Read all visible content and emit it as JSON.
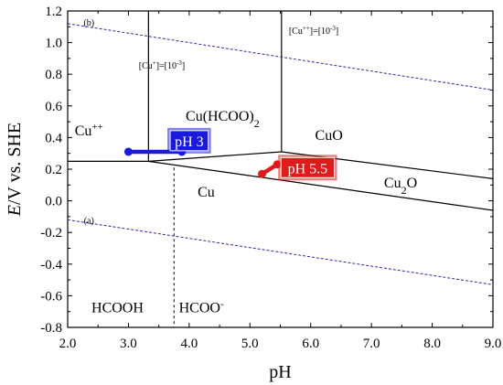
{
  "chart_data": {
    "type": "line",
    "title": "",
    "xlabel": "pH",
    "ylabel_italic": "E",
    "ylabel_rest": "/V vs. SHE",
    "xlim": [
      2.0,
      9.0
    ],
    "ylim": [
      -0.8,
      1.2
    ],
    "xticks": [
      "2.0",
      "3.0",
      "4.0",
      "5.0",
      "6.0",
      "7.0",
      "8.0",
      "9.0"
    ],
    "yticks": [
      "-0.8",
      "-0.6",
      "-0.4",
      "-0.2",
      "0.0",
      "0.2",
      "0.4",
      "0.6",
      "0.8",
      "1.0",
      "1.2"
    ],
    "boundaries": [
      {
        "name": "",
        "style": "solid",
        "x": [
          2.0,
          3.33
        ],
        "y": [
          0.25,
          0.25
        ]
      },
      {
        "name": "",
        "style": "solid",
        "x": [
          3.33,
          3.33
        ],
        "y": [
          0.25,
          1.2
        ]
      },
      {
        "name": "",
        "style": "solid",
        "x": [
          3.33,
          5.52
        ],
        "y": [
          0.25,
          0.31
        ]
      },
      {
        "name": "",
        "style": "solid",
        "x": [
          5.52,
          5.52
        ],
        "y": [
          0.31,
          1.2
        ]
      },
      {
        "name": "",
        "style": "solid",
        "x": [
          5.52,
          9.0
        ],
        "y": [
          0.31,
          0.14
        ]
      },
      {
        "name": "",
        "style": "solid",
        "x": [
          3.33,
          9.0
        ],
        "y": [
          0.25,
          -0.06
        ]
      },
      {
        "name": "",
        "style": "dashed",
        "x": [
          3.75,
          3.75
        ],
        "y": [
          0.21,
          -0.8
        ]
      },
      {
        "name": "",
        "style": "dotted-blue",
        "x": [
          2.0,
          9.0
        ],
        "y": [
          1.12,
          0.7
        ]
      },
      {
        "name": "",
        "style": "dotted-blue",
        "x": [
          2.0,
          9.0
        ],
        "y": [
          -0.12,
          -0.53
        ]
      }
    ],
    "series": [
      {
        "name": "pH 3",
        "color": "#1a1adf",
        "x": [
          3.0,
          3.88
        ],
        "y": [
          0.31,
          0.31
        ]
      },
      {
        "name": "pH 5.5",
        "color": "#e01b1b",
        "x": [
          5.2,
          5.45
        ],
        "y": [
          0.17,
          0.23
        ]
      }
    ],
    "region_labels": [
      {
        "text": "Cu",
        "sup": "++",
        "sub": "",
        "x": 2.35,
        "y": 0.45
      },
      {
        "text": "Cu(HCOO)",
        "sup": "",
        "sub": "2",
        "x": 4.55,
        "y": 0.54
      },
      {
        "text": "CuO",
        "sup": "",
        "sub": "",
        "x": 6.3,
        "y": 0.42
      },
      {
        "text": "Cu",
        "sup": "",
        "sub": "2",
        "x": 7.48,
        "y": 0.12,
        "suffix": "O"
      },
      {
        "text": "Cu",
        "sup": "",
        "sub": "",
        "x": 4.28,
        "y": 0.06
      },
      {
        "text": "HCOOH",
        "sup": "",
        "sub": "",
        "x": 2.82,
        "y": -0.67
      },
      {
        "text": "HCOO",
        "sup": "-",
        "sub": "",
        "x": 4.2,
        "y": -0.67
      }
    ],
    "annotations": [
      {
        "text": "(b)",
        "x": 2.35,
        "y": 1.13
      },
      {
        "text": "(a)",
        "x": 2.35,
        "y": -0.12
      },
      {
        "text": "[Cu",
        "sup": "+",
        "after": "]=[10",
        "sup2": "-3",
        "close": "]",
        "x": 3.55,
        "y": 0.86
      },
      {
        "text": "[Cu",
        "sup": "++",
        "after": "]=[10",
        "sup2": "-3",
        "close": "]",
        "x": 6.05,
        "y": 1.08
      }
    ],
    "callouts": [
      {
        "text": "pH 3",
        "x": 4.0,
        "y": 0.38,
        "bg": "#1a1adf"
      },
      {
        "text": "pH 5.5",
        "x": 5.95,
        "y": 0.21,
        "bg": "#e01b1b"
      }
    ],
    "grid": false,
    "legend": "none"
  }
}
